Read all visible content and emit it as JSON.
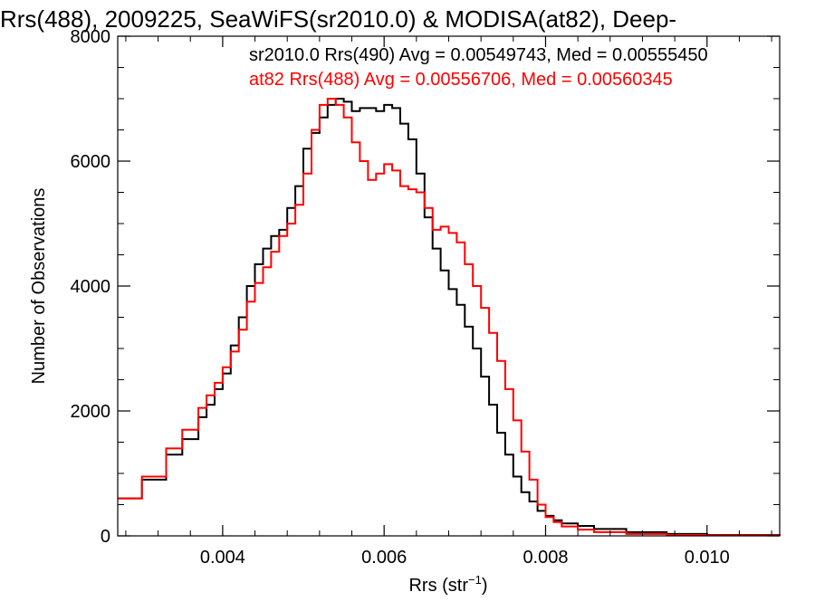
{
  "chart_data": {
    "type": "line",
    "title": "Rrs(488), 2009225, SeaWiFS(sr2010.0) & MODISA(at82), Deep-",
    "xlabel_main": "Rrs (str",
    "xlabel_sup": "−1",
    "xlabel_close": ")",
    "ylabel": "Number of Observations",
    "xlim": [
      0.0027,
      0.0109
    ],
    "ylim": [
      0,
      8000
    ],
    "x_ticks": [
      0.004,
      0.006,
      0.008,
      0.01
    ],
    "x_tick_labels": [
      "0.004",
      "0.006",
      "0.008",
      "0.010"
    ],
    "y_ticks": [
      0,
      2000,
      4000,
      6000,
      8000
    ],
    "y_tick_labels": [
      "0",
      "2000",
      "4000",
      "6000",
      "8000"
    ],
    "step": true,
    "grid": false,
    "annotations": [
      {
        "text": "sr2010.0 Rrs(490) Avg = 0.00549743, Med = 0.00555450",
        "color": "#000000"
      },
      {
        "text": "at82 Rrs(488) Avg = 0.00556706, Med = 0.00560345",
        "color": "#ff0000"
      }
    ],
    "series": [
      {
        "color": "#000000",
        "x": [
          0.0027,
          0.003,
          0.0033,
          0.0035,
          0.0037,
          0.0038,
          0.0039,
          0.004,
          0.0041,
          0.0042,
          0.0043,
          0.0044,
          0.0045,
          0.0046,
          0.0047,
          0.0048,
          0.0049,
          0.005,
          0.0051,
          0.0052,
          0.0053,
          0.0054,
          0.0055,
          0.0056,
          0.0057,
          0.0058,
          0.0059,
          0.006,
          0.0061,
          0.0062,
          0.0063,
          0.0064,
          0.0065,
          0.0066,
          0.0067,
          0.0068,
          0.0069,
          0.007,
          0.0071,
          0.0072,
          0.0073,
          0.0074,
          0.0075,
          0.0076,
          0.0077,
          0.0078,
          0.0079,
          0.008,
          0.0081,
          0.0082,
          0.0084,
          0.0086,
          0.009,
          0.0095,
          0.01,
          0.0109
        ],
        "y": [
          600,
          900,
          1300,
          1550,
          1900,
          2100,
          2350,
          2600,
          3050,
          3500,
          4000,
          4350,
          4600,
          4800,
          4900,
          5250,
          5600,
          6200,
          6450,
          6700,
          6900,
          7000,
          6950,
          6800,
          6850,
          6850,
          6800,
          6900,
          6850,
          6600,
          6350,
          5800,
          5100,
          4600,
          4250,
          3950,
          3700,
          3350,
          3000,
          2550,
          2100,
          1650,
          1300,
          950,
          700,
          550,
          400,
          320,
          250,
          200,
          160,
          110,
          60,
          30,
          15,
          5
        ]
      },
      {
        "color": "#ff0000",
        "x": [
          0.0027,
          0.003,
          0.0033,
          0.0035,
          0.0037,
          0.0038,
          0.0039,
          0.004,
          0.0041,
          0.0042,
          0.0043,
          0.0044,
          0.0045,
          0.0046,
          0.0047,
          0.0048,
          0.0049,
          0.005,
          0.0051,
          0.0052,
          0.0053,
          0.0054,
          0.0055,
          0.0056,
          0.0057,
          0.0058,
          0.0059,
          0.006,
          0.0061,
          0.0062,
          0.0063,
          0.0064,
          0.0065,
          0.0066,
          0.0067,
          0.0068,
          0.0069,
          0.007,
          0.0071,
          0.0072,
          0.0073,
          0.0074,
          0.0075,
          0.0076,
          0.0077,
          0.0078,
          0.0079,
          0.008,
          0.0081,
          0.0082,
          0.0084,
          0.0086,
          0.009,
          0.0095,
          0.01,
          0.0109
        ],
        "y": [
          600,
          950,
          1400,
          1700,
          2050,
          2250,
          2450,
          2700,
          2950,
          3300,
          3750,
          4050,
          4300,
          4550,
          4800,
          5000,
          5300,
          5800,
          6500,
          6900,
          7000,
          6900,
          6700,
          6300,
          6000,
          5700,
          5800,
          5950,
          5850,
          5600,
          5550,
          5500,
          5250,
          4900,
          4950,
          4850,
          4700,
          4350,
          4000,
          3650,
          3250,
          2800,
          2350,
          1850,
          1350,
          900,
          500,
          300,
          220,
          150,
          100,
          60,
          30,
          15,
          8,
          3
        ]
      }
    ]
  }
}
